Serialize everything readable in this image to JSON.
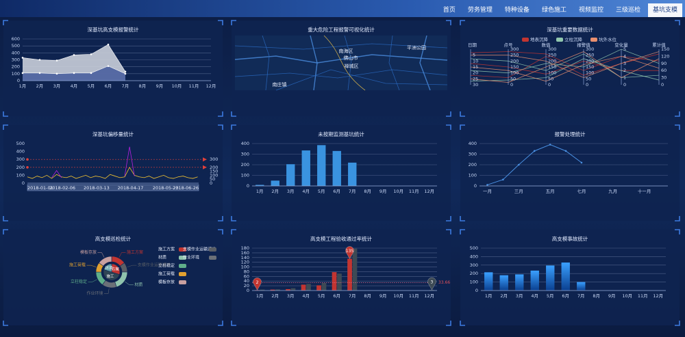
{
  "nav": {
    "tabs": [
      "首页",
      "劳务管理",
      "特种设备",
      "绿色施工",
      "视频监控",
      "三级巡检",
      "基坑支模"
    ],
    "active": 6
  },
  "chart_data": [
    {
      "type": "area",
      "title": "深基坑高支模报警统计",
      "categories": [
        "1月",
        "2月",
        "3月",
        "4月",
        "5月",
        "6月",
        "7月",
        "8月",
        "9月",
        "10月",
        "11月",
        "12月"
      ],
      "series": [
        {
          "color": "#c9ced9",
          "values": [
            330,
            300,
            290,
            370,
            380,
            520,
            130,
            null,
            null,
            null,
            null,
            null
          ]
        },
        {
          "color": "#4a5f9e",
          "values": [
            110,
            110,
            100,
            110,
            110,
            210,
            100,
            null,
            null,
            null,
            null,
            null
          ]
        }
      ],
      "ylim": [
        0,
        600
      ],
      "yticks": [
        0,
        100,
        200,
        300,
        400,
        500,
        600
      ],
      "grid": true
    },
    {
      "type": "map",
      "title": "重大危险工程报警可视化统计",
      "labels": [
        "南海区",
        "佛山市",
        "禅城区",
        "平洲公园",
        "南庄镇"
      ]
    },
    {
      "type": "parallel",
      "title": "深基坑重要数据统计",
      "axes": [
        {
          "name": "日期",
          "lim": [
            0,
            30
          ],
          "ticks": [
            5,
            10,
            15,
            20,
            25,
            30
          ],
          "inverse": true
        },
        {
          "name": "点号",
          "lim": [
            0,
            300
          ],
          "ticks": [
            0,
            50,
            100,
            150,
            200,
            250,
            300
          ]
        },
        {
          "name": "数值",
          "lim": [
            0,
            300
          ],
          "ticks": [
            0,
            50,
            100,
            150,
            200,
            250,
            300
          ]
        },
        {
          "name": "报警值",
          "lim": [
            0,
            300
          ],
          "ticks": [
            0,
            50,
            100,
            150,
            200,
            250,
            300
          ]
        },
        {
          "name": "变化量",
          "lim": [
            0,
            5
          ],
          "ticks": [
            0,
            1,
            2,
            3,
            4,
            5
          ]
        },
        {
          "name": "累计值",
          "lim": [
            0,
            150
          ],
          "ticks": [
            0,
            30,
            60,
            90,
            120,
            150
          ]
        }
      ],
      "series": [
        {
          "name": "地表沉降",
          "color": "#c23531",
          "rows": [
            [
              3,
              280,
              260,
              120,
              4,
              100
            ],
            [
              12,
              150,
              90,
              200,
              2,
              60
            ],
            [
              22,
              60,
              240,
              80,
              3,
              130
            ]
          ]
        },
        {
          "name": "立柱沉降",
          "color": "#91c7ae",
          "rows": [
            [
              8,
              200,
              120,
              260,
              1,
              40
            ],
            [
              18,
              100,
              180,
              150,
              5,
              90
            ],
            [
              27,
              40,
              60,
              220,
              2,
              20
            ]
          ]
        },
        {
          "name": "坑外水位",
          "color": "#e98f6f",
          "rows": [
            [
              5,
              250,
              200,
              60,
              3,
              140
            ],
            [
              15,
              120,
              30,
              170,
              4,
              70
            ],
            [
              25,
              20,
              150,
              280,
              1,
              110
            ]
          ]
        }
      ]
    },
    {
      "type": "line",
      "title": "深基坑偏移量统计",
      "x": [
        "2018-01-01",
        "2018-01-06",
        "2018-01-11",
        "2018-01-16",
        "2018-01-21",
        "2018-01-26",
        "2018-01-31",
        "2018-02-05",
        "2018-02-10",
        "2018-02-15",
        "2018-02-20",
        "2018-02-25",
        "2018-03-02",
        "2018-03-07",
        "2018-03-12",
        "2018-03-17",
        "2018-03-22",
        "2018-03-27",
        "2018-04-01",
        "2018-04-06",
        "2018-04-11",
        "2018-04-16",
        "2018-04-21",
        "2018-04-26",
        "2018-05-01",
        "2018-05-06",
        "2018-05-11",
        "2018-05-16",
        "2018-05-21",
        "2018-05-26",
        "2018-05-31",
        "2018-06-05",
        "2018-06-10",
        "2018-06-15",
        "2018-06-20",
        "2018-06-25"
      ],
      "xlim": [
        "2018-01-01",
        "2018-06-26"
      ],
      "xticks": [
        "2018-01-01",
        "2018-02-06",
        "2018-03-13",
        "2018-04-17",
        "2018-05-23",
        "2018-06-26"
      ],
      "series": [
        {
          "color": "#f4c430",
          "values": [
            80,
            60,
            90,
            70,
            100,
            60,
            110,
            80,
            70,
            90,
            60,
            80,
            100,
            70,
            90,
            80,
            60,
            110,
            90,
            70,
            80,
            200,
            100,
            80,
            70,
            90,
            60,
            80,
            100,
            70,
            60,
            80,
            90,
            70,
            60,
            80
          ]
        },
        {
          "color": "#b620e0",
          "values": [
            null,
            null,
            null,
            null,
            null,
            70,
            160,
            70,
            null,
            null,
            null,
            null,
            null,
            null,
            null,
            null,
            null,
            null,
            null,
            null,
            90,
            460,
            90,
            null,
            null,
            null,
            null,
            null,
            null,
            null,
            null,
            null,
            null,
            null,
            null,
            null
          ]
        }
      ],
      "ylim": [
        0,
        500
      ],
      "yticks": [
        0,
        100,
        200,
        300,
        400,
        500
      ],
      "y2lim": [
        0,
        500
      ],
      "y2ticks": [
        0,
        50,
        100,
        150,
        200,
        300
      ],
      "mark_lines": [
        300,
        200
      ],
      "mark_line_color": "#e0403a"
    },
    {
      "type": "bar",
      "title": "未按期监测基坑统计",
      "categories": [
        "1月",
        "2月",
        "3月",
        "4月",
        "5月",
        "6月",
        "7月",
        "8月",
        "9月",
        "10月",
        "11月",
        "12月"
      ],
      "values": [
        10,
        50,
        205,
        335,
        385,
        330,
        220,
        null,
        null,
        null,
        null,
        null
      ],
      "color": "#3a93e0",
      "ylim": [
        0,
        400
      ],
      "yticks": [
        0,
        100,
        200,
        300,
        400
      ],
      "grid": true
    },
    {
      "type": "line",
      "title": "报警处理统计",
      "categories": [
        "一月",
        null,
        "三月",
        null,
        "五月",
        null,
        "七月",
        null,
        "九月",
        null,
        "十一月",
        null
      ],
      "values": [
        10,
        60,
        200,
        330,
        390,
        330,
        220,
        null,
        null,
        null,
        null,
        null
      ],
      "color": "#4a90e2",
      "ylim": [
        0,
        400
      ],
      "yticks": [
        0,
        100,
        200,
        300,
        400
      ],
      "grid": true
    },
    {
      "type": "pie",
      "title": "高支模巡检统计",
      "categories": [
        "施工方案",
        "支模作业运输通道",
        "材质",
        "作业环境",
        "立柱稳定",
        "施工荷载",
        "模板存放"
      ],
      "values": [
        15,
        10,
        20,
        15,
        15,
        10,
        15
      ],
      "colors": [
        "#c23531",
        "#5a5f66",
        "#8fc3ad",
        "#6b7078",
        "#5fae8a",
        "#e0a030",
        "#c8a0a0"
      ],
      "inner": {
        "categories": [
          "方案",
          "施工",
          "环境"
        ],
        "values": [
          30,
          50,
          20
        ],
        "colors": [
          "#c23531",
          "#2f4554",
          "#61a0a8"
        ]
      }
    },
    {
      "type": "bar",
      "title": "高支模工程验收通过率统计",
      "categories": [
        "1月",
        "2月",
        "3月",
        "4月",
        "5月",
        "6月",
        "7月",
        "8月",
        "9月",
        "10月",
        "11月",
        "12月"
      ],
      "series": [
        {
          "color": "#c23531",
          "values": [
            2,
            4,
            6,
            25,
            22,
            78,
            135,
            null,
            null,
            null,
            null,
            null
          ],
          "mark_point": [
            "max",
            "min"
          ]
        },
        {
          "color": "#3d4a55",
          "values": [
            4,
            5,
            10,
            28,
            32,
            72,
            178,
            null,
            null,
            null,
            null,
            3
          ],
          "mark_point": [
            "min"
          ]
        }
      ],
      "average": 33.66,
      "ylim": [
        0,
        180
      ],
      "yticks": [
        0,
        20,
        40,
        60,
        80,
        100,
        120,
        140,
        160,
        180
      ],
      "grid": true
    },
    {
      "type": "bar",
      "title": "高支模事故统计",
      "categories": [
        "1月",
        "2月",
        "3月",
        "4月",
        "5月",
        "6月",
        "7月",
        "8月",
        "9月",
        "10月",
        "11月",
        "12月"
      ],
      "values": [
        215,
        180,
        190,
        235,
        295,
        330,
        100,
        null,
        null,
        null,
        null,
        null
      ],
      "gradient": [
        "#3aa0ff",
        "#0a3f8f"
      ],
      "ylim": [
        0,
        500
      ],
      "yticks": [
        0,
        100,
        200,
        300,
        400,
        500
      ],
      "grid": true
    }
  ]
}
